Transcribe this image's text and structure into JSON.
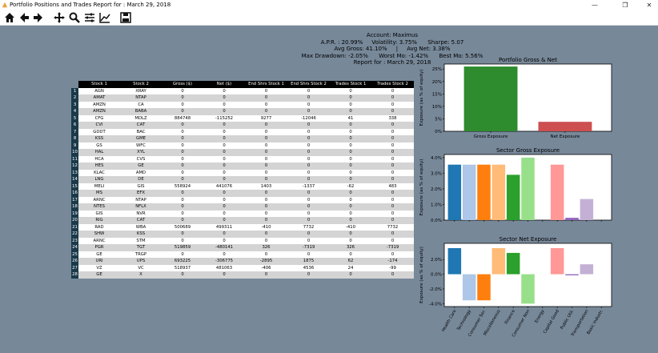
{
  "window": {
    "title": "Portfolio Positions and Trades Report for : March 29, 2018",
    "minimize": "—",
    "maximize": "❐",
    "close": "✕"
  },
  "toolbar": {
    "home_icon": "home-icon",
    "back_icon": "back-arrow-icon",
    "forward_icon": "forward-arrow-icon",
    "pan_icon": "pan-icon",
    "zoom_icon": "zoom-icon",
    "configure_icon": "configure-subplots-icon",
    "edit_icon": "edit-axes-icon",
    "save_icon": "save-icon"
  },
  "header": {
    "line1": "Account: Maximus",
    "line2": "A.P.R. : 20.99%     Volatility: 3.75%      Sharpe: 5.07",
    "line3": "Avg Gross: 41.10%     |     Avg Net: 3.38%",
    "line4": "Max Drawdown: -2.05%      Worst Mo: -1.42%      Best Mo: 5.56%",
    "line5": "Report for : March 29, 2018"
  },
  "table": {
    "columns": [
      "Stock 1",
      "Stock 2",
      "Gross ($)",
      "Net ($)",
      "End Shrs Stock 1",
      "End Shrs Stock 2",
      "Trades Stock 1",
      "Trades Stock 2"
    ],
    "rows": [
      [
        "1",
        "AGN",
        "XRAY",
        "0",
        "0",
        "0",
        "0",
        "0",
        "0"
      ],
      [
        "2",
        "AMAT",
        "NTAP",
        "0",
        "0",
        "0",
        "0",
        "0",
        "0"
      ],
      [
        "3",
        "AMZN",
        "CA",
        "0",
        "0",
        "0",
        "0",
        "0",
        "0"
      ],
      [
        "4",
        "AMZN",
        "BABA",
        "0",
        "0",
        "0",
        "0",
        "0",
        "0"
      ],
      [
        "5",
        "CFG",
        "MDLZ",
        "884748",
        "-115252",
        "9277",
        "-12046",
        "41",
        "338"
      ],
      [
        "6",
        "CVI",
        "CAT",
        "0",
        "0",
        "0",
        "0",
        "0",
        "0"
      ],
      [
        "7",
        "GDDT",
        "BAC",
        "0",
        "0",
        "0",
        "0",
        "0",
        "0"
      ],
      [
        "8",
        "KSS",
        "GME",
        "0",
        "0",
        "0",
        "0",
        "0",
        "0"
      ],
      [
        "9",
        "GS",
        "WFC",
        "0",
        "0",
        "0",
        "0",
        "0",
        "0"
      ],
      [
        "10",
        "HAL",
        "XYL",
        "0",
        "0",
        "0",
        "0",
        "0",
        "0"
      ],
      [
        "11",
        "HCA",
        "CVS",
        "0",
        "0",
        "0",
        "0",
        "0",
        "0"
      ],
      [
        "12",
        "HES",
        "GE",
        "0",
        "0",
        "0",
        "0",
        "0",
        "0"
      ],
      [
        "13",
        "KLAC",
        "AMD",
        "0",
        "0",
        "0",
        "0",
        "0",
        "0"
      ],
      [
        "14",
        "LNG",
        "DE",
        "0",
        "0",
        "0",
        "0",
        "0",
        "0"
      ],
      [
        "15",
        "MELI",
        "GIS",
        "558924",
        "441076",
        "1403",
        "-1337",
        "-62",
        "483"
      ],
      [
        "16",
        "MS",
        "EFX",
        "0",
        "0",
        "0",
        "0",
        "0",
        "0"
      ],
      [
        "17",
        "ARNC",
        "NTAP",
        "0",
        "0",
        "0",
        "0",
        "0",
        "0"
      ],
      [
        "18",
        "NTES",
        "NFLX",
        "0",
        "0",
        "0",
        "0",
        "0",
        "0"
      ],
      [
        "19",
        "GIS",
        "NVR",
        "0",
        "0",
        "0",
        "0",
        "0",
        "0"
      ],
      [
        "20",
        "RIG",
        "CAT",
        "0",
        "0",
        "0",
        "0",
        "0",
        "0"
      ],
      [
        "21",
        "RAD",
        "WBA",
        "500689",
        "499311",
        "-410",
        "7732",
        "-410",
        "7732"
      ],
      [
        "22",
        "SHW",
        "KSS",
        "0",
        "0",
        "0",
        "0",
        "0",
        "0"
      ],
      [
        "23",
        "ARNC",
        "STM",
        "0",
        "0",
        "0",
        "0",
        "0",
        "0"
      ],
      [
        "24",
        "PGR",
        "TGT",
        "519859",
        "-480141",
        "326",
        "-7319",
        "326",
        "-7319"
      ],
      [
        "25",
        "GE",
        "TRGP",
        "0",
        "0",
        "0",
        "0",
        "0",
        "0"
      ],
      [
        "26",
        "URI",
        "UPS",
        "693225",
        "-306775",
        "-2895",
        "1875",
        "62",
        "-174"
      ],
      [
        "27",
        "VZ",
        "VC",
        "518937",
        "481063",
        "-406",
        "4536",
        "24",
        "-99"
      ],
      [
        "28",
        "GE",
        "X",
        "0",
        "0",
        "0",
        "0",
        "0",
        "0"
      ]
    ]
  },
  "chart_data": [
    {
      "type": "bar",
      "title": "Portfolio Gross & Net",
      "ylabel": "Exposure (as % of equity)",
      "categories": [
        "Gross Exposure",
        "Net Exposure"
      ],
      "values": [
        26.0,
        3.8
      ],
      "colors": [
        "#2e8b2e",
        "#cd4f4f"
      ],
      "ylim": [
        0,
        27
      ],
      "yticks": [
        "0%",
        "5%",
        "10%",
        "15%",
        "20%",
        "25%"
      ],
      "ytick_values": [
        0,
        5,
        10,
        15,
        20,
        25
      ]
    },
    {
      "type": "bar",
      "title": "Sector Gross Exposure",
      "ylabel": "Exposure (as % of equity)",
      "categories": [
        "Health Care",
        "Technology",
        "Consumer Ser.",
        "Miscellaneous",
        "Finance",
        "Consumer Non",
        "Energy",
        "Capital Good",
        "Public Util.",
        "Transportation",
        "Basic Industr."
      ],
      "values": [
        3.55,
        3.55,
        3.55,
        3.55,
        2.9,
        4.0,
        0,
        3.55,
        0.15,
        1.35,
        0
      ],
      "colors": [
        "#1f77b4",
        "#aec7e8",
        "#ff7f0e",
        "#ffbb78",
        "#2ca02c",
        "#98df8a",
        "#d62728",
        "#ff9896",
        "#9467bd",
        "#c5b0d5",
        "#8c564b"
      ],
      "ylim": [
        0,
        4.2
      ],
      "yticks": [
        "0.0%",
        "1.0%",
        "2.0%",
        "3.0%",
        "4.0%"
      ],
      "ytick_values": [
        0,
        1,
        2,
        3,
        4
      ]
    },
    {
      "type": "bar",
      "title": "Sector Net Exposure",
      "ylabel": "Exposure (as % of equity)",
      "categories": [
        "Health Care",
        "Technology",
        "Consumer Ser.",
        "Miscellaneous",
        "Finance",
        "Consumer Non",
        "Energy",
        "Capital Good",
        "Public Util.",
        "Transportation",
        "Basic Industr."
      ],
      "values": [
        3.55,
        -3.55,
        -3.55,
        3.55,
        2.9,
        -4.0,
        0,
        3.55,
        -0.15,
        1.35,
        0
      ],
      "colors": [
        "#1f77b4",
        "#aec7e8",
        "#ff7f0e",
        "#ffbb78",
        "#2ca02c",
        "#98df8a",
        "#d62728",
        "#ff9896",
        "#9467bd",
        "#c5b0d5",
        "#8c564b"
      ],
      "ylim": [
        -4.4,
        4.2
      ],
      "yticks": [
        "-4.0%",
        "-2.0%",
        "0.0%",
        "2.0%"
      ],
      "ytick_values": [
        -4,
        -2,
        0,
        2
      ]
    }
  ]
}
